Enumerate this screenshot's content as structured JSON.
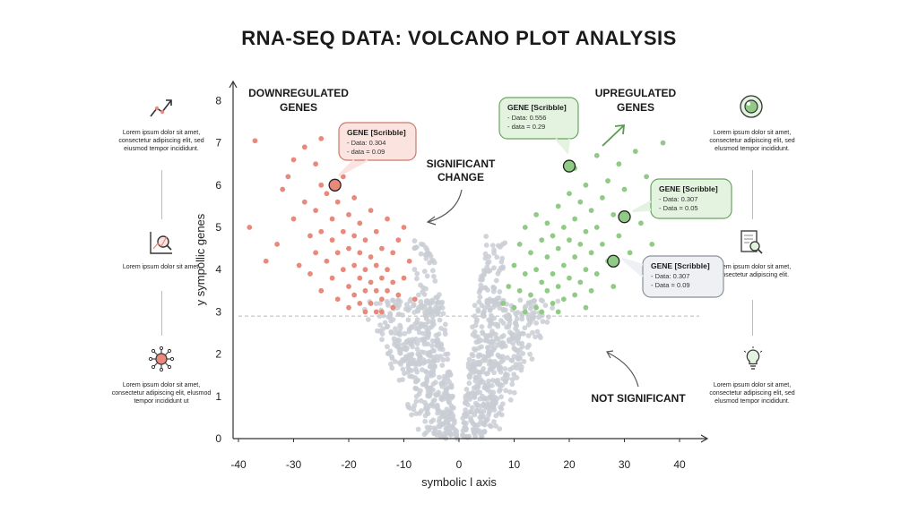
{
  "title": "RNA-SEQ DATA: VOLCANO PLOT ANALYSIS",
  "left_panel": [
    {
      "icon": "trend-arrow-icon",
      "text": "Lorem ipsum dolor sit amet, consectetur adipiscing elit, sed eiusmod tempor incididunt."
    },
    {
      "icon": "chart-magnifier-icon",
      "text": "Lorem ipsum dolor sit amet,"
    },
    {
      "icon": "network-node-icon",
      "text": "Lorem ipsum dolor sit amet, consectetur adipiscing elit, elusmod tempor incididunt ut"
    }
  ],
  "right_panel": [
    {
      "icon": "target-circle-icon",
      "text": "Lorem ipsum dolor sit amet, consectetur adipiscing elit, sed elusmod tempor incididunt."
    },
    {
      "icon": "document-search-icon",
      "text": "Lorem ipsum dolor sit amet, consectetur adipiscing elit."
    },
    {
      "icon": "lightbulb-icon",
      "text": "Lorem ipsum dolor sit amet, consectetur adipiscing elit, sed elusmod tempor incididunt."
    }
  ],
  "chart_data": {
    "type": "scatter",
    "xlabel": "symbolic l axis",
    "ylabel": "y sympollic genes",
    "xlim": [
      -40,
      45
    ],
    "ylim": [
      0,
      8
    ],
    "xticks": [
      -40,
      -30,
      -20,
      -10,
      0,
      10,
      20,
      30,
      40
    ],
    "yticks": [
      0,
      1,
      2,
      3,
      4,
      5,
      6,
      7,
      8
    ],
    "threshold_y": 2.9,
    "colors": {
      "down": "#e8897c",
      "up": "#8fcb85",
      "ns": "#c9ccd4",
      "axis": "#333333",
      "down_box": "#fbe3df",
      "up_box": "#e3f3df",
      "ns_box": "#eef0f3"
    },
    "downregulated_points": [
      [
        -38,
        5.0
      ],
      [
        -37,
        7.05
      ],
      [
        -35,
        4.2
      ],
      [
        -33,
        4.6
      ],
      [
        -32,
        5.9
      ],
      [
        -31,
        6.2
      ],
      [
        -30,
        6.6
      ],
      [
        -30,
        5.2
      ],
      [
        -29,
        4.1
      ],
      [
        -28,
        6.9
      ],
      [
        -28,
        5.6
      ],
      [
        -27,
        4.8
      ],
      [
        -27,
        3.9
      ],
      [
        -26,
        6.5
      ],
      [
        -26,
        5.4
      ],
      [
        -26,
        4.4
      ],
      [
        -25,
        7.1
      ],
      [
        -25,
        6.0
      ],
      [
        -25,
        4.9
      ],
      [
        -25,
        3.5
      ],
      [
        -24,
        5.8
      ],
      [
        -24,
        4.2
      ],
      [
        -23,
        5.2
      ],
      [
        -23,
        4.7
      ],
      [
        -23,
        3.8
      ],
      [
        -22,
        5.6
      ],
      [
        -22,
        4.4
      ],
      [
        -22,
        3.3
      ],
      [
        -21,
        6.2
      ],
      [
        -21,
        4.9
      ],
      [
        -21,
        4.0
      ],
      [
        -20,
        5.3
      ],
      [
        -20,
        4.5
      ],
      [
        -20,
        3.6
      ],
      [
        -20,
        3.1
      ],
      [
        -19,
        5.7
      ],
      [
        -19,
        4.8
      ],
      [
        -19,
        4.1
      ],
      [
        -19,
        3.4
      ],
      [
        -18,
        5.1
      ],
      [
        -18,
        4.4
      ],
      [
        -18,
        3.8
      ],
      [
        -18,
        3.2
      ],
      [
        -17,
        4.7
      ],
      [
        -17,
        4.0
      ],
      [
        -17,
        3.5
      ],
      [
        -17,
        3.0
      ],
      [
        -16,
        5.4
      ],
      [
        -16,
        4.3
      ],
      [
        -16,
        3.7
      ],
      [
        -16,
        3.2
      ],
      [
        -15,
        4.9
      ],
      [
        -15,
        4.1
      ],
      [
        -15,
        3.5
      ],
      [
        -15,
        3.0
      ],
      [
        -14,
        4.5
      ],
      [
        -14,
        3.8
      ],
      [
        -14,
        3.3
      ],
      [
        -14,
        3.0
      ],
      [
        -13,
        5.2
      ],
      [
        -13,
        4.0
      ],
      [
        -13,
        3.5
      ],
      [
        -12,
        4.4
      ],
      [
        -12,
        3.7
      ],
      [
        -12,
        3.1
      ],
      [
        -11,
        4.7
      ],
      [
        -11,
        3.4
      ],
      [
        -10,
        5.0
      ],
      [
        -10,
        3.8
      ],
      [
        -9,
        4.2
      ],
      [
        -8,
        3.3
      ]
    ],
    "upregulated_points": [
      [
        8,
        3.2
      ],
      [
        9,
        3.6
      ],
      [
        10,
        4.1
      ],
      [
        10,
        3.1
      ],
      [
        11,
        4.6
      ],
      [
        11,
        3.5
      ],
      [
        12,
        5.0
      ],
      [
        12,
        3.9
      ],
      [
        12,
        3.0
      ],
      [
        13,
        4.4
      ],
      [
        13,
        3.4
      ],
      [
        14,
        5.3
      ],
      [
        14,
        4.0
      ],
      [
        14,
        3.1
      ],
      [
        15,
        4.7
      ],
      [
        15,
        3.7
      ],
      [
        15,
        3.0
      ],
      [
        16,
        5.1
      ],
      [
        16,
        4.3
      ],
      [
        16,
        3.5
      ],
      [
        17,
        4.8
      ],
      [
        17,
        3.9
      ],
      [
        17,
        3.2
      ],
      [
        18,
        5.5
      ],
      [
        18,
        4.5
      ],
      [
        18,
        3.6
      ],
      [
        18,
        3.0
      ],
      [
        19,
        5.0
      ],
      [
        19,
        4.1
      ],
      [
        19,
        3.3
      ],
      [
        20,
        5.8
      ],
      [
        20,
        4.7
      ],
      [
        20,
        3.8
      ],
      [
        21,
        6.4
      ],
      [
        21,
        5.2
      ],
      [
        21,
        4.3
      ],
      [
        21,
        3.4
      ],
      [
        22,
        5.6
      ],
      [
        22,
        4.6
      ],
      [
        22,
        3.7
      ],
      [
        23,
        6.0
      ],
      [
        23,
        4.9
      ],
      [
        23,
        4.0
      ],
      [
        23,
        3.1
      ],
      [
        24,
        5.4
      ],
      [
        24,
        4.4
      ],
      [
        24,
        3.5
      ],
      [
        25,
        6.7
      ],
      [
        25,
        5.0
      ],
      [
        25,
        3.9
      ],
      [
        26,
        5.7
      ],
      [
        26,
        4.6
      ],
      [
        27,
        6.1
      ],
      [
        27,
        4.2
      ],
      [
        28,
        5.3
      ],
      [
        28,
        3.6
      ],
      [
        29,
        6.5
      ],
      [
        29,
        4.8
      ],
      [
        30,
        5.9
      ],
      [
        31,
        4.4
      ],
      [
        32,
        6.8
      ],
      [
        33,
        5.1
      ],
      [
        34,
        6.2
      ],
      [
        35,
        4.6
      ],
      [
        37,
        7.0
      ]
    ],
    "not_significant_points": [],
    "highlighted_genes": [
      {
        "label": "GENE [Scribble]",
        "line1": "- Data: 0.304",
        "line2": "- data = 0.09",
        "x": -22.5,
        "y": 6.0,
        "group": "down"
      },
      {
        "label": "GENE [Scribble]",
        "line1": "- Data: 0.556",
        "line2": "- data = 0.29",
        "x": 20.0,
        "y": 6.45,
        "group": "up"
      },
      {
        "label": "GENE [Scribble]",
        "line1": "- Data: 0.307",
        "line2": "- Data = 0.05",
        "x": 30.0,
        "y": 5.25,
        "group": "up"
      },
      {
        "label": "GENE [Scribble]",
        "line1": "- Data: 0.307",
        "line2": "- Data = 0.09",
        "x": 28.0,
        "y": 4.2,
        "group": "ns"
      }
    ],
    "annotations": {
      "down": [
        "DOWNREGULATED",
        "GENES"
      ],
      "up": [
        "UPREGULATED",
        "GENES"
      ],
      "sig": [
        "SIGNIFICANT",
        "CHANGE"
      ],
      "ns": [
        "NOT SIGNIFICANT"
      ]
    }
  }
}
